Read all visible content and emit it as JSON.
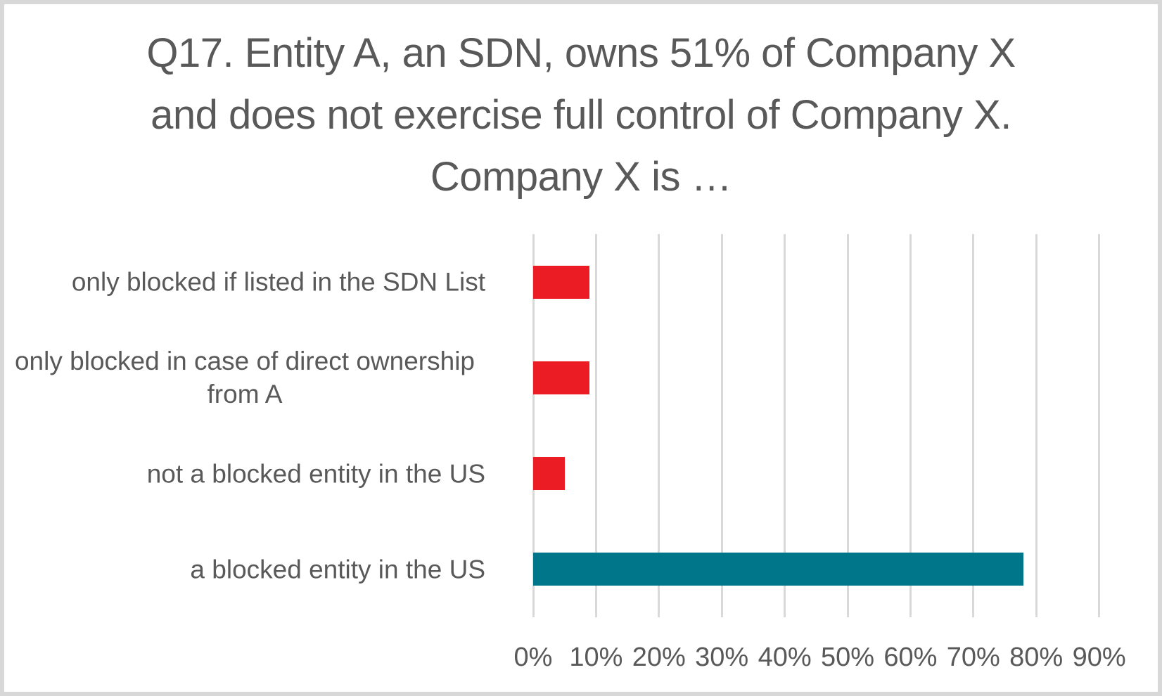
{
  "chart_data": {
    "type": "bar",
    "orientation": "horizontal",
    "title": "Q17. Entity A, an SDN, owns 51% of Company X and does not exercise full control of Company X. Company X is …",
    "title_lines": [
      "Q17. Entity A, an SDN, owns 51% of Company X",
      "and does not exercise full control of Company X.",
      "Company X is …"
    ],
    "categories": [
      "only blocked if listed in the SDN List",
      "only blocked in case of direct ownership from A",
      "not a blocked entity in the US",
      "a blocked entity in the US"
    ],
    "values": [
      9,
      9,
      5,
      78
    ],
    "unit": "%",
    "bar_colors": [
      "#ec1c24",
      "#ec1c24",
      "#ec1c24",
      "#00768a"
    ],
    "xlabel": "",
    "ylabel": "",
    "xlim": [
      0,
      90
    ],
    "x_ticks": [
      0,
      10,
      20,
      30,
      40,
      50,
      60,
      70,
      80,
      90
    ],
    "x_tick_labels": [
      "0%",
      "10%",
      "20%",
      "30%",
      "40%",
      "50%",
      "60%",
      "70%",
      "80%",
      "90%"
    ],
    "grid": "vertical gridlines only",
    "legend": "none"
  },
  "colors": {
    "text": "#595959",
    "gridline": "#d9d9d9",
    "background": "#ffffff",
    "frame_border": "#d8d8d8",
    "red_bar": "#ec1c24",
    "teal_bar": "#00768a"
  }
}
